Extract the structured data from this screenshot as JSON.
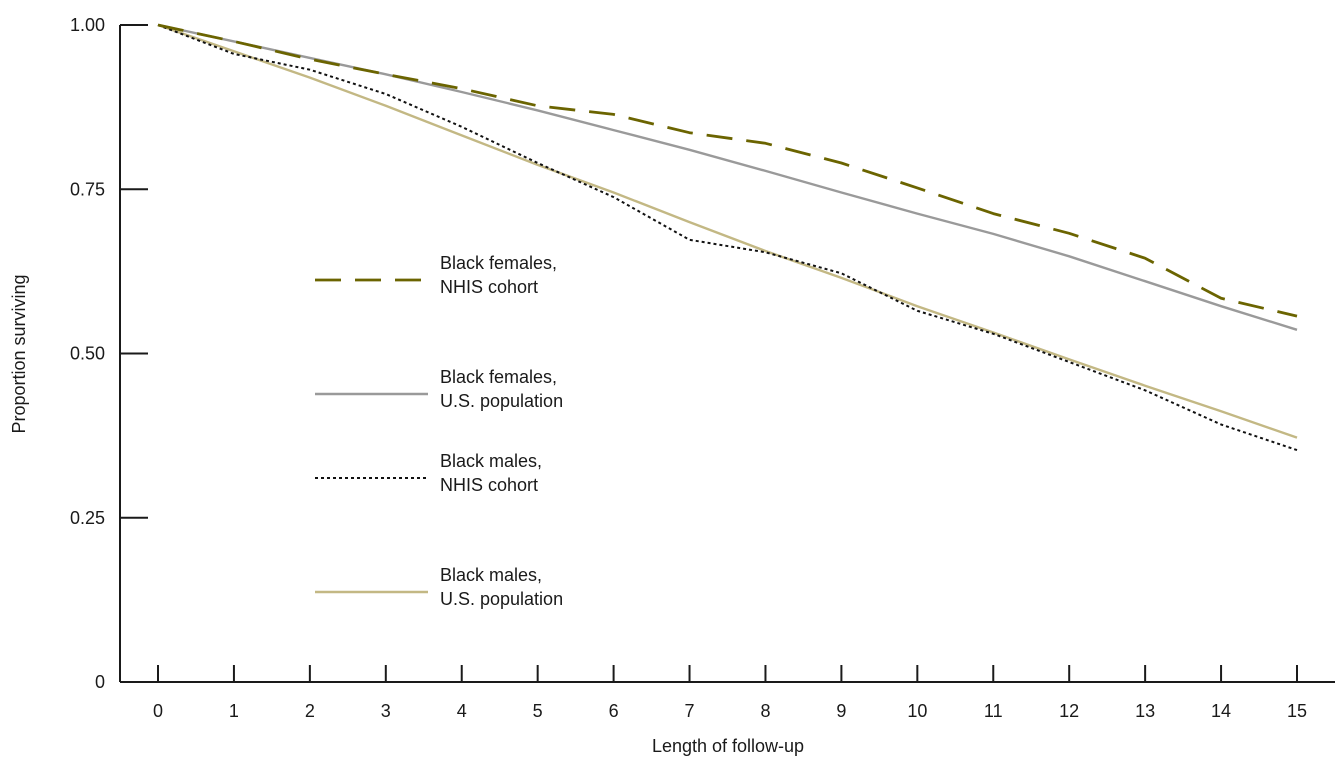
{
  "chart_data": {
    "type": "line",
    "xlabel": "Length of follow-up",
    "ylabel": "Proportion surviving",
    "xlim": [
      0,
      15
    ],
    "ylim": [
      0,
      1
    ],
    "x_ticks": [
      0,
      1,
      2,
      3,
      4,
      5,
      6,
      7,
      8,
      9,
      10,
      11,
      12,
      13,
      14,
      15
    ],
    "y_ticks": [
      {
        "value": 0,
        "label": "0"
      },
      {
        "value": 0.25,
        "label": "0.25"
      },
      {
        "value": 0.5,
        "label": "0.50"
      },
      {
        "value": 0.75,
        "label": "0.75"
      },
      {
        "value": 1.0,
        "label": "1.00"
      }
    ],
    "grid": false,
    "legend_position": "center-left",
    "x": [
      0,
      1,
      2,
      3,
      4,
      5,
      6,
      7,
      8,
      9,
      10,
      11,
      12,
      13,
      14,
      15
    ],
    "series": [
      {
        "name_lines": [
          "Black females,",
          "NHIS cohort"
        ],
        "color": "#6b6400",
        "style": "dashed",
        "values": [
          1.0,
          0.975,
          0.948,
          0.925,
          0.903,
          0.877,
          0.864,
          0.836,
          0.82,
          0.79,
          0.752,
          0.713,
          0.683,
          0.645,
          0.584,
          0.557
        ]
      },
      {
        "name_lines": [
          "Black females,",
          "U.S. population"
        ],
        "color": "#9a9a9a",
        "style": "solid",
        "values": [
          1.0,
          0.975,
          0.95,
          0.925,
          0.898,
          0.87,
          0.84,
          0.81,
          0.778,
          0.745,
          0.713,
          0.682,
          0.648,
          0.61,
          0.572,
          0.536
        ]
      },
      {
        "name_lines": [
          "Black males,",
          "NHIS cohort"
        ],
        "color": "#111111",
        "style": "dotted",
        "values": [
          1.0,
          0.956,
          0.932,
          0.895,
          0.845,
          0.79,
          0.738,
          0.673,
          0.654,
          0.622,
          0.565,
          0.53,
          0.487,
          0.444,
          0.392,
          0.353
        ]
      },
      {
        "name_lines": [
          "Black males,",
          "U.S. population"
        ],
        "color": "#c3b884",
        "style": "solid",
        "values": [
          1.0,
          0.96,
          0.92,
          0.877,
          0.832,
          0.787,
          0.745,
          0.7,
          0.656,
          0.615,
          0.572,
          0.532,
          0.491,
          0.451,
          0.412,
          0.372
        ]
      }
    ]
  }
}
